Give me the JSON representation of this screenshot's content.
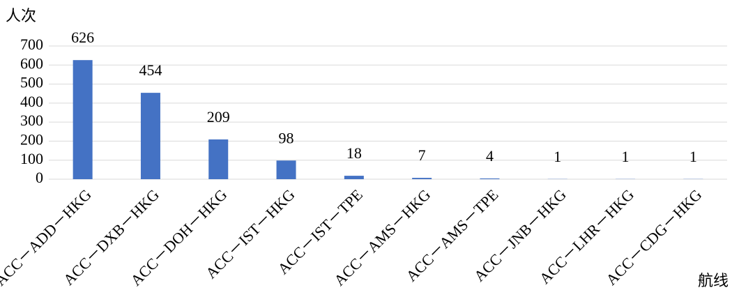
{
  "chart_data": {
    "type": "bar",
    "y_label": "人次",
    "x_label": "航线",
    "categories": [
      "ACC－ADD－HKG",
      "ACC－DXB－HKG",
      "ACC－DOH－HKG",
      "ACC－IST－HKG",
      "ACC－IST－TPE",
      "ACC－AMS－HKG",
      "ACC－AMS－TPE",
      "ACC－JNB－HKG",
      "ACC－LHR－HKG",
      "ACC－CDG－HKG"
    ],
    "values": [
      626,
      454,
      209,
      98,
      18,
      7,
      4,
      1,
      1,
      1
    ],
    "color": "#4472c4",
    "ylim": [
      0,
      700
    ],
    "yticks": [
      0,
      100,
      200,
      300,
      400,
      500,
      600,
      700
    ],
    "grid": true
  }
}
